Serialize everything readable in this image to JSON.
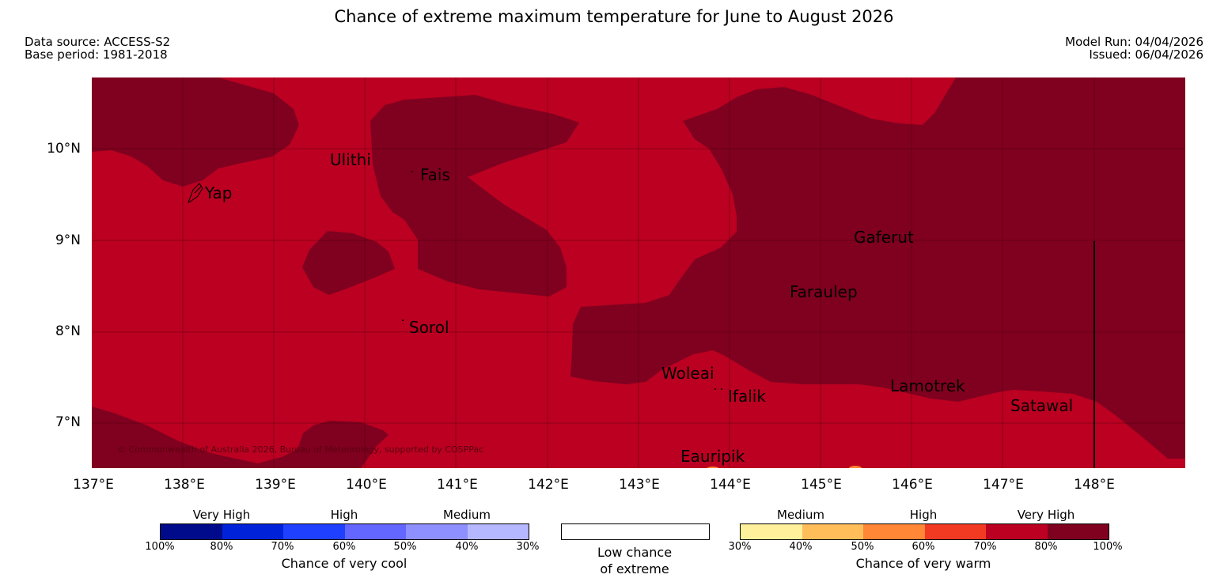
{
  "title": "Chance of extreme maximum temperature for June to August 2026",
  "data_source": "Data source: ACCESS-S2",
  "base_period": "Base period: 1981-2018",
  "model_run": "Model Run: 04/04/2026",
  "issued": "Issued: 06/04/2026",
  "lat_labels": [
    "10°N",
    "9°N",
    "8°N",
    "7°N"
  ],
  "lon_labels": [
    "137°E",
    "138°E",
    "139°E",
    "140°E",
    "141°E",
    "142°E",
    "143°E",
    "144°E",
    "145°E",
    "146°E",
    "147°E",
    "148°E"
  ],
  "places": [
    "Ulithi",
    "Fais",
    "Yap",
    "Gaferut",
    "Faraulep",
    "Sorol",
    "Woleai",
    "Ifalik",
    "Lamotrek",
    "Satawal",
    "Eauripik"
  ],
  "copyright": "© Commonwealth of Australia 2026, Bureau of Meteorology, supported by COSPPac",
  "colors": {
    "warm_70_80": "#bb0021",
    "warm_80_100": "#80001f",
    "cool": [
      "#000b8c",
      "#0022d8",
      "#2040ff",
      "#6366ff",
      "#8e90ff",
      "#b6b8ff"
    ],
    "warm": [
      "#fff09c",
      "#ffbe5a",
      "#ff8735",
      "#f23a23",
      "#bb0021",
      "#80001f"
    ]
  },
  "legend": {
    "cool": {
      "categories": [
        "Very High",
        "High",
        "Medium"
      ],
      "ticks": [
        "100%",
        "80%",
        "70%",
        "60%",
        "50%",
        "40%",
        "30%"
      ],
      "title": "Chance of very cool"
    },
    "neutral": {
      "line1": "Low chance",
      "line2": "of extreme"
    },
    "warm": {
      "categories": [
        "Medium",
        "High",
        "Very High"
      ],
      "ticks": [
        "30%",
        "40%",
        "50%",
        "60%",
        "70%",
        "80%",
        "100%"
      ],
      "title": "Chance of very warm"
    }
  }
}
